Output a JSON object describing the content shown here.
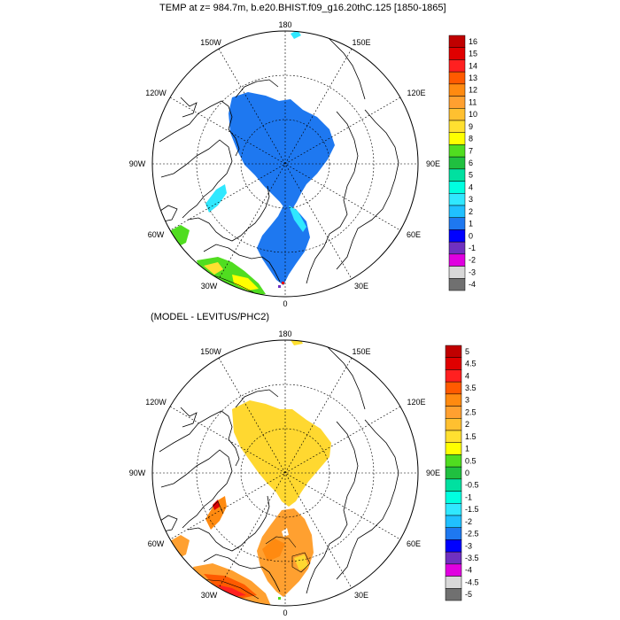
{
  "panel1": {
    "title": "TEMP at z= 984.7m, b.e20.BHIST.f09_g16.20thC.125 [1850-1865]",
    "lon_labels": {
      "top": "180",
      "tl": "150W",
      "tr": "150E",
      "ul": "120W",
      "ur": "120E",
      "l": "90W",
      "r": "90E",
      "ll": "60W",
      "lr": "60E",
      "bl": "30W",
      "br": "30E",
      "bottom": "0"
    },
    "colorbar": {
      "labels": [
        "16",
        "15",
        "14",
        "13",
        "12",
        "11",
        "10",
        "9",
        "8",
        "7",
        "6",
        "5",
        "4",
        "3",
        "2",
        "1",
        "0",
        "-1",
        "-2",
        "-3",
        "-4"
      ],
      "colors": [
        "#c00000",
        "#e00000",
        "#ff2020",
        "#ff5a00",
        "#ff8a10",
        "#ffa030",
        "#ffc030",
        "#ffe030",
        "#ffff00",
        "#50dd20",
        "#20c040",
        "#00e0a0",
        "#00ffe0",
        "#30e8ff",
        "#20c0ff",
        "#1e78f0",
        "#0000ff",
        "#7030c0",
        "#e000e0",
        "#d8d8d8",
        "#707070"
      ]
    }
  },
  "panel2": {
    "title": "(MODEL - LEVITUS/PHC2)",
    "lon_labels": {
      "top": "180",
      "tl": "150W",
      "tr": "150E",
      "ul": "120W",
      "ur": "120E",
      "l": "90W",
      "r": "90E",
      "ll": "60W",
      "lr": "60E",
      "bl": "30W",
      "br": "30E",
      "bottom": "0"
    },
    "colorbar": {
      "labels": [
        "5",
        "4.5",
        "4",
        "3.5",
        "3",
        "2.5",
        "2",
        "1.5",
        "1",
        "0.5",
        "0",
        "-0.5",
        "-1",
        "-1.5",
        "-2",
        "-2.5",
        "-3",
        "-3.5",
        "-4",
        "-4.5",
        "-5"
      ],
      "colors": [
        "#c00000",
        "#e00000",
        "#ff2020",
        "#ff5a00",
        "#ff8a10",
        "#ffa030",
        "#ffc030",
        "#ffe030",
        "#ffff00",
        "#50dd20",
        "#20c040",
        "#00e0a0",
        "#00ffe0",
        "#30e8ff",
        "#20c0ff",
        "#1e78f0",
        "#0000ff",
        "#7030c0",
        "#e000e0",
        "#d8d8d8",
        "#707070"
      ]
    }
  }
}
